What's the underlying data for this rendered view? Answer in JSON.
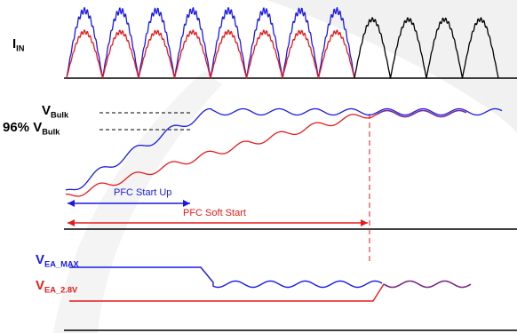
{
  "colors": {
    "blue": "#1a1ae6",
    "red": "#e61a1a",
    "black": "#000000",
    "purple": "#7a2a8a",
    "watermark": "#efefef"
  },
  "labels": {
    "iin_main": "I",
    "iin_sub": "IN",
    "vbulk_main": "V",
    "vbulk_sub": "Bulk",
    "vbulk96_prefix": "96% V",
    "vbulk96_sub": "Bulk",
    "vea_max_main": "V",
    "vea_max_sub": "EA_MAX",
    "vea_28_main": "V",
    "vea_28_sub": "EA_2.8V",
    "pfc_start_up": "PFC Start Up",
    "pfc_soft_start": "PFC Soft Start"
  }
}
